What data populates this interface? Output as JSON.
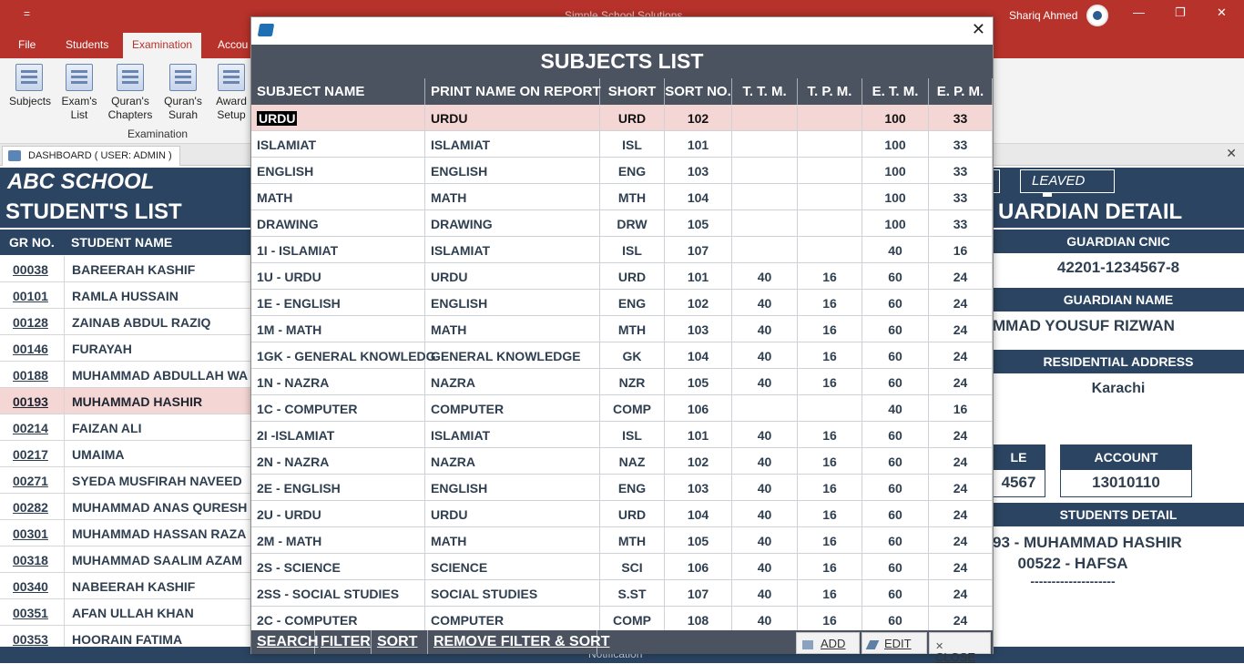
{
  "app": {
    "title": "Simple School Solutions",
    "user": "Shariq Ahmed",
    "quick_access": "=",
    "minimize": "—",
    "restore": "❐",
    "close": "✕"
  },
  "ribbon_tabs": [
    "File",
    "Students",
    "Examination",
    "Accou"
  ],
  "ribbon_buttons": [
    {
      "label1": "Subjects",
      "label2": ""
    },
    {
      "label1": "Exam's",
      "label2": "List"
    },
    {
      "label1": "Quran's",
      "label2": "Chapters"
    },
    {
      "label1": "Quran's",
      "label2": "Surah"
    },
    {
      "label1": "Award",
      "label2": "Setup"
    }
  ],
  "ribbon_group_label": "Examination",
  "doc_tab": "DASHBOARD ( USER: ADMIN )",
  "dashboard": {
    "school_name": "ABC SCHOOL",
    "students_heading": "STUDENT'S LIST",
    "guardian_heading": "UARDIAN DETAIL",
    "leaved_label": "LEAVED",
    "col_gr": "GR NO.",
    "col_name": "STUDENT NAME",
    "students": [
      {
        "gr": "00038",
        "name": "BAREERAH KASHIF"
      },
      {
        "gr": "00101",
        "name": "RAMLA HUSSAIN"
      },
      {
        "gr": "00128",
        "name": "ZAINAB ABDUL RAZIQ"
      },
      {
        "gr": "00146",
        "name": "FURAYAH"
      },
      {
        "gr": "00188",
        "name": "MUHAMMAD ABDULLAH WA"
      },
      {
        "gr": "00193",
        "name": "MUHAMMAD HASHIR"
      },
      {
        "gr": "00214",
        "name": "FAIZAN ALI"
      },
      {
        "gr": "00217",
        "name": "UMAIMA"
      },
      {
        "gr": "00271",
        "name": "SYEDA MUSFIRAH NAVEED"
      },
      {
        "gr": "00282",
        "name": "MUHAMMAD ANAS QURESH"
      },
      {
        "gr": "00301",
        "name": "MUHAMMAD HASSAN RAZA"
      },
      {
        "gr": "00318",
        "name": "MUHAMMAD SAALIM AZAM"
      },
      {
        "gr": "00340",
        "name": "NABEERAH KASHIF"
      },
      {
        "gr": "00351",
        "name": "AFAN ULLAH KHAN"
      },
      {
        "gr": "00353",
        "name": "HOORAIN FATIMA"
      }
    ],
    "guardian": {
      "cnic_label": "GUARDIAN CNIC",
      "cnic": "42201-1234567-8",
      "name_label": "GUARDIAN NAME",
      "name": "MMAD YOUSUF RIZWAN",
      "address_label": "RESIDENTIAL ADDRESS",
      "address": "Karachi",
      "mobile_label": "LE",
      "mobile": "4567",
      "account_label": "ACCOUNT",
      "account": "13010110",
      "students_detail_label": "STUDENTS DETAIL",
      "student1": "93 - MUHAMMAD HASHIR",
      "student2": "00522 - HAFSA",
      "separator": "--------------------"
    },
    "notification": "Notification"
  },
  "modal": {
    "heading": "SUBJECTS LIST",
    "columns": [
      "SUBJECT NAME",
      "PRINT NAME ON REPORT",
      "SHORT",
      "SORT NO.",
      "T. T. M.",
      "T. P. M.",
      "E. T. M.",
      "E. P. M."
    ],
    "rows": [
      [
        "URDU",
        "URDU",
        "URD",
        "102",
        "",
        "",
        "100",
        "33"
      ],
      [
        "ISLAMIAT",
        "ISLAMIAT",
        "ISL",
        "101",
        "",
        "",
        "100",
        "33"
      ],
      [
        "ENGLISH",
        "ENGLISH",
        "ENG",
        "103",
        "",
        "",
        "100",
        "33"
      ],
      [
        "MATH",
        "MATH",
        "MTH",
        "104",
        "",
        "",
        "100",
        "33"
      ],
      [
        "DRAWING",
        "DRAWING",
        "DRW",
        "105",
        "",
        "",
        "100",
        "33"
      ],
      [
        "1I - ISLAMIAT",
        "ISLAMIAT",
        "ISL",
        "107",
        "",
        "",
        "40",
        "16"
      ],
      [
        "1U - URDU",
        "URDU",
        "URD",
        "101",
        "40",
        "16",
        "60",
        "24"
      ],
      [
        "1E - ENGLISH",
        "ENGLISH",
        "ENG",
        "102",
        "40",
        "16",
        "60",
        "24"
      ],
      [
        "1M - MATH",
        "MATH",
        "MTH",
        "103",
        "40",
        "16",
        "60",
        "24"
      ],
      [
        "1GK - GENERAL KNOWLEDG",
        "GENERAL KNOWLEDGE",
        "GK",
        "104",
        "40",
        "16",
        "60",
        "24"
      ],
      [
        "1N - NAZRA",
        "NAZRA",
        "NZR",
        "105",
        "40",
        "16",
        "60",
        "24"
      ],
      [
        "1C - COMPUTER",
        "COMPUTER",
        "COMP",
        "106",
        "",
        "",
        "40",
        "16"
      ],
      [
        "2I -ISLAMIAT",
        "ISLAMIAT",
        "ISL",
        "101",
        "40",
        "16",
        "60",
        "24"
      ],
      [
        "2N - NAZRA",
        "NAZRA",
        "NAZ",
        "102",
        "40",
        "16",
        "60",
        "24"
      ],
      [
        "2E - ENGLISH",
        "ENGLISH",
        "ENG",
        "103",
        "40",
        "16",
        "60",
        "24"
      ],
      [
        "2U - URDU",
        "URDU",
        "URD",
        "104",
        "40",
        "16",
        "60",
        "24"
      ],
      [
        "2M - MATH",
        "MATH",
        "MTH",
        "105",
        "40",
        "16",
        "60",
        "24"
      ],
      [
        "2S - SCIENCE",
        "SCIENCE",
        "SCI",
        "106",
        "40",
        "16",
        "60",
        "24"
      ],
      [
        "2SS - SOCIAL STUDIES",
        "SOCIAL STUDIES",
        "S.ST",
        "107",
        "40",
        "16",
        "60",
        "24"
      ],
      [
        "2C - COMPUTER",
        "COMPUTER",
        "COMP",
        "108",
        "40",
        "16",
        "60",
        "24"
      ]
    ],
    "footer": {
      "search": "SEARCH",
      "filter": "FILTER",
      "sort": "SORT",
      "remove": "REMOVE FILTER & SORT",
      "add": "ADD",
      "edit": "EDIT",
      "close": "CLOSE"
    }
  }
}
